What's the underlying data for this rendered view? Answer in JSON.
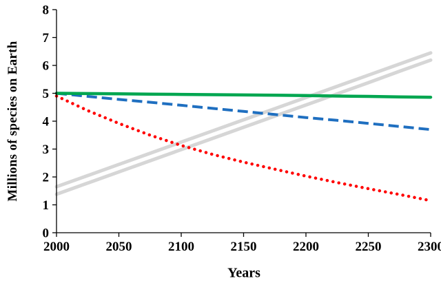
{
  "chart_data": {
    "type": "line",
    "title": "",
    "xlabel": "Years",
    "ylabel": "Millions of species on Earth",
    "xlim": [
      2000,
      2300
    ],
    "ylim": [
      0,
      8
    ],
    "x_ticks": [
      "2000",
      "2050",
      "2100",
      "2150",
      "2200",
      "2250",
      "2300"
    ],
    "y_ticks": [
      "0",
      "1",
      "2",
      "3",
      "4",
      "5",
      "6",
      "7",
      "8"
    ],
    "grid": false,
    "legend": "none",
    "axis_color": "#000000",
    "x": [
      2000,
      2025,
      2050,
      2075,
      2100,
      2125,
      2150,
      2175,
      2200,
      2225,
      2250,
      2275,
      2300
    ],
    "series": [
      {
        "name": "gray-band-upper",
        "style": "solid",
        "color": "#d6d6d6",
        "width": 5,
        "values": [
          1.65,
          2.05,
          2.45,
          2.85,
          3.25,
          3.65,
          4.05,
          4.45,
          4.85,
          5.25,
          5.65,
          6.05,
          6.45
        ]
      },
      {
        "name": "gray-band-lower",
        "style": "solid",
        "color": "#d6d6d6",
        "width": 5,
        "values": [
          1.38,
          1.78,
          2.18,
          2.58,
          2.98,
          3.38,
          3.78,
          4.18,
          4.58,
          4.98,
          5.38,
          5.79,
          6.19
        ]
      },
      {
        "name": "dotted-red",
        "style": "dotted",
        "color": "#ff0000",
        "width": 4.5,
        "values": [
          4.9,
          4.38,
          3.92,
          3.5,
          3.13,
          2.81,
          2.53,
          2.28,
          2.03,
          1.8,
          1.58,
          1.37,
          1.15
        ]
      },
      {
        "name": "dashed-blue",
        "style": "dashed",
        "color": "#1f6fc0",
        "width": 4,
        "values": [
          5.0,
          4.89,
          4.78,
          4.68,
          4.57,
          4.46,
          4.35,
          4.24,
          4.13,
          4.03,
          3.92,
          3.81,
          3.7
        ]
      },
      {
        "name": "solid-green",
        "style": "solid",
        "color": "#00a650",
        "width": 4.5,
        "values": [
          5.0,
          4.99,
          4.98,
          4.97,
          4.96,
          4.95,
          4.94,
          4.93,
          4.92,
          4.9,
          4.89,
          4.87,
          4.86
        ]
      }
    ]
  }
}
